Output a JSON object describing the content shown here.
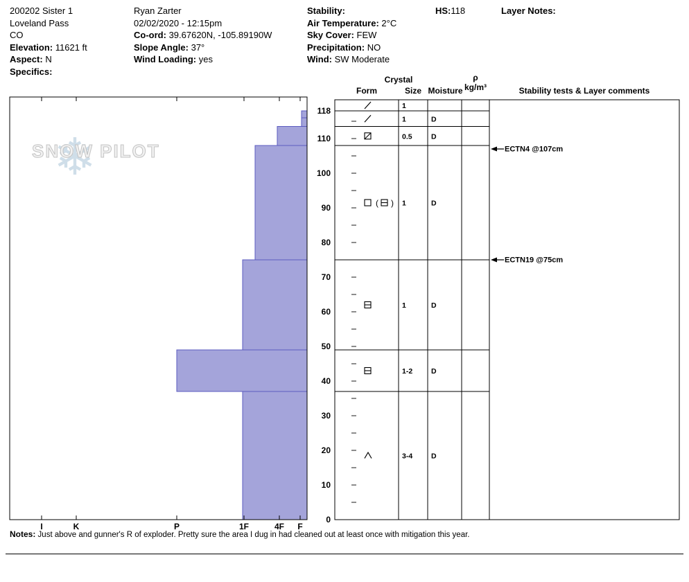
{
  "header": {
    "pit_name": "200202 Sister 1",
    "location": "Loveland Pass",
    "region": "CO",
    "elevation": {
      "label": "Elevation:",
      "value": "11621 ft"
    },
    "aspect": {
      "label": "Aspect:",
      "value": "N"
    },
    "specifics": {
      "label": "Specifics:",
      "value": ""
    },
    "observer": "Ryan Zarter",
    "datetime": "02/02/2020 - 12:15pm",
    "coord": {
      "label": "Co-ord:",
      "value": "39.67620N, -105.89190W"
    },
    "slope_angle": {
      "label": "Slope Angle:",
      "value": "37°"
    },
    "wind_loading": {
      "label": "Wind Loading:",
      "value": "yes"
    },
    "stability": {
      "label": "Stability:",
      "value": ""
    },
    "air_temp": {
      "label": "Air Temperature:",
      "value": "2°C"
    },
    "sky_cover": {
      "label": "Sky Cover:",
      "value": "FEW"
    },
    "precipitation": {
      "label": "Precipitation:",
      "value": "NO"
    },
    "wind": {
      "label": "Wind:",
      "value": "SW Moderate"
    },
    "hs": {
      "label": "HS:",
      "value": "118"
    },
    "layer_notes": {
      "label": "Layer Notes:",
      "value": ""
    }
  },
  "watermark": {
    "text": "SNOW PILOT",
    "snowflake": "❄"
  },
  "notes": {
    "label": "Notes:",
    "text": "Just above and gunner's R of exploder.  Pretty sure the area I dug in had cleaned out at least once with mitigation this year."
  },
  "chart_data": {
    "type": "snow-profile",
    "title": "Snow pit hardness profile with grain table",
    "depth_axis": {
      "unit": "cm",
      "surface": 118,
      "ticks": [
        118,
        110,
        100,
        90,
        80,
        70,
        60,
        50,
        40,
        30,
        20,
        10,
        0
      ]
    },
    "hardness_axis": {
      "labels": [
        "I",
        "K",
        "P",
        "1F",
        "4F",
        "F"
      ]
    },
    "table_headers": {
      "crystal": "Crystal",
      "form": "Form",
      "size": "Size",
      "moisture": "Moisture",
      "rho": "ρ",
      "rho_units": "kg/m³",
      "comments": "Stability tests & Layer comments"
    },
    "bar_fill": "#a4a4da",
    "bar_stroke": "#5b5bc0",
    "layers": [
      {
        "top_cm": 118,
        "bottom_cm": 116,
        "hardness": "F",
        "form": "slash",
        "grain_size_mm": "1",
        "moisture": ""
      },
      {
        "top_cm": 116,
        "bottom_cm": 113.5,
        "hardness": "F",
        "form": "slash",
        "grain_size_mm": "1",
        "moisture": "D"
      },
      {
        "top_cm": 113.5,
        "bottom_cm": 108,
        "hardness": "4F",
        "form": "square-slash",
        "grain_size_mm": "0.5",
        "moisture": "D"
      },
      {
        "top_cm": 108,
        "bottom_cm": 75,
        "hardness": "1F+",
        "form": "square-paren-squarebar",
        "grain_size_mm": "1",
        "moisture": "D"
      },
      {
        "top_cm": 75,
        "bottom_cm": 49,
        "hardness": "1F",
        "form": "square-bar",
        "grain_size_mm": "1",
        "moisture": "D"
      },
      {
        "top_cm": 49,
        "bottom_cm": 37,
        "hardness": "P",
        "form": "square-bar",
        "grain_size_mm": "1-2",
        "moisture": "D"
      },
      {
        "top_cm": 37,
        "bottom_cm": 0,
        "hardness": "1F",
        "form": "caret",
        "grain_size_mm": "3-4",
        "moisture": "D"
      }
    ],
    "stability_tests": [
      {
        "label": "ECTN4 @107cm",
        "depth_cm": 107
      },
      {
        "label": "ECTN19 @75cm",
        "depth_cm": 75
      }
    ]
  }
}
